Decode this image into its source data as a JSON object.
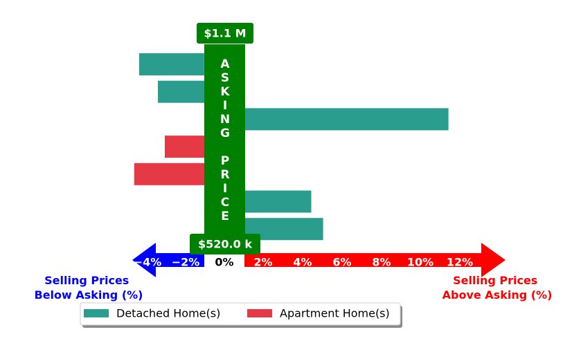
{
  "chart_data": {
    "type": "bar",
    "orientation": "horizontal",
    "unit": "%",
    "series": [
      {
        "name": "Detached Home(s)",
        "color": "#2a9d8f"
      },
      {
        "name": "Apartment Home(s)",
        "color": "#e63946"
      }
    ],
    "bars": [
      {
        "series": 0,
        "value": -3.3
      },
      {
        "series": 0,
        "value": -2.35
      },
      {
        "series": 0,
        "value": 10.3
      },
      {
        "series": 1,
        "value": -2.0
      },
      {
        "series": 1,
        "value": -3.55
      },
      {
        "series": 0,
        "value": 3.35
      },
      {
        "series": 0,
        "value": 3.95
      }
    ],
    "x_ticks": [
      "−4%",
      "−2%",
      "0%",
      "2%",
      "4%",
      "6%",
      "8%",
      "10%",
      "12%"
    ],
    "asking_price_label": "ASKING PRICE",
    "top_price": "$1.1 M",
    "bottom_price": "$520.0 k",
    "left_caption": [
      "Selling Prices",
      "Below Asking (%)"
    ],
    "right_caption": [
      "Selling Prices",
      "Above Asking (%)"
    ],
    "legend": [
      "Detached Home(s)",
      "Apartment Home(s)"
    ],
    "legend_position": "bottom-left",
    "colors": {
      "detached": "#2a9d8f",
      "apartment": "#e63946",
      "asking_band": "#008000",
      "below_arrow": "#0000ff",
      "above_arrow": "#ff0000"
    }
  }
}
